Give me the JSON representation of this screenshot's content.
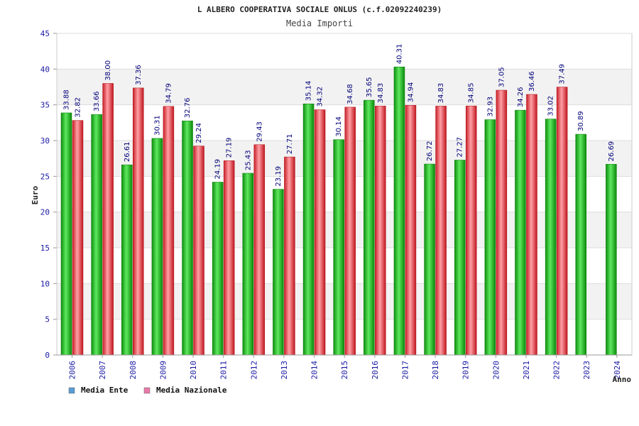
{
  "chart_data": {
    "type": "bar",
    "title": "L ALBERO COOPERATIVA SOCIALE ONLUS (c.f.02092240239)",
    "subtitle": "Media Importi",
    "xlabel": "Anno",
    "ylabel": "Euro",
    "ylim": [
      0,
      45
    ],
    "yticks": [
      0,
      5,
      10,
      15,
      20,
      25,
      30,
      35,
      40,
      45
    ],
    "categories": [
      "2006",
      "2007",
      "2008",
      "2009",
      "2010",
      "2011",
      "2012",
      "2013",
      "2014",
      "2015",
      "2016",
      "2017",
      "2018",
      "2019",
      "2020",
      "2021",
      "2022",
      "2023",
      "2024"
    ],
    "series": [
      {
        "name": "Media Ente",
        "color": "#1cb81c",
        "legend_color": "#5b9bd5",
        "values": [
          33.88,
          33.66,
          26.61,
          30.31,
          32.76,
          24.19,
          25.43,
          23.19,
          35.14,
          30.14,
          35.65,
          40.31,
          26.72,
          27.27,
          32.93,
          34.26,
          33.02,
          30.89,
          26.69
        ],
        "labels": [
          "33.88",
          "33.66",
          "26.61",
          "30.31",
          "32.76",
          "24.19",
          "25.43",
          "23.19",
          "35.14",
          "30.14",
          "35.65",
          "40.31",
          "26.72",
          "27.27",
          "32.93",
          "34.26",
          "33.02",
          "30.89",
          "26.69"
        ]
      },
      {
        "name": "Media Nazionale",
        "color": "#e8323a",
        "legend_color": "#e87aa8",
        "values": [
          32.82,
          38.0,
          37.36,
          34.79,
          29.24,
          27.19,
          29.43,
          27.71,
          34.32,
          34.68,
          34.83,
          34.94,
          34.83,
          34.85,
          37.05,
          36.46,
          37.49,
          null,
          null
        ],
        "labels": [
          "32.82",
          "38.00",
          "37.36",
          "34.79",
          "29.24",
          "27.19",
          "29.43",
          "27.71",
          "34.32",
          "34.68",
          "34.83",
          "34.94",
          "34.83",
          "34.85",
          "37.05",
          "36.46",
          "37.49",
          null,
          null
        ]
      }
    ],
    "grid": true,
    "legend": "bottom-left"
  }
}
